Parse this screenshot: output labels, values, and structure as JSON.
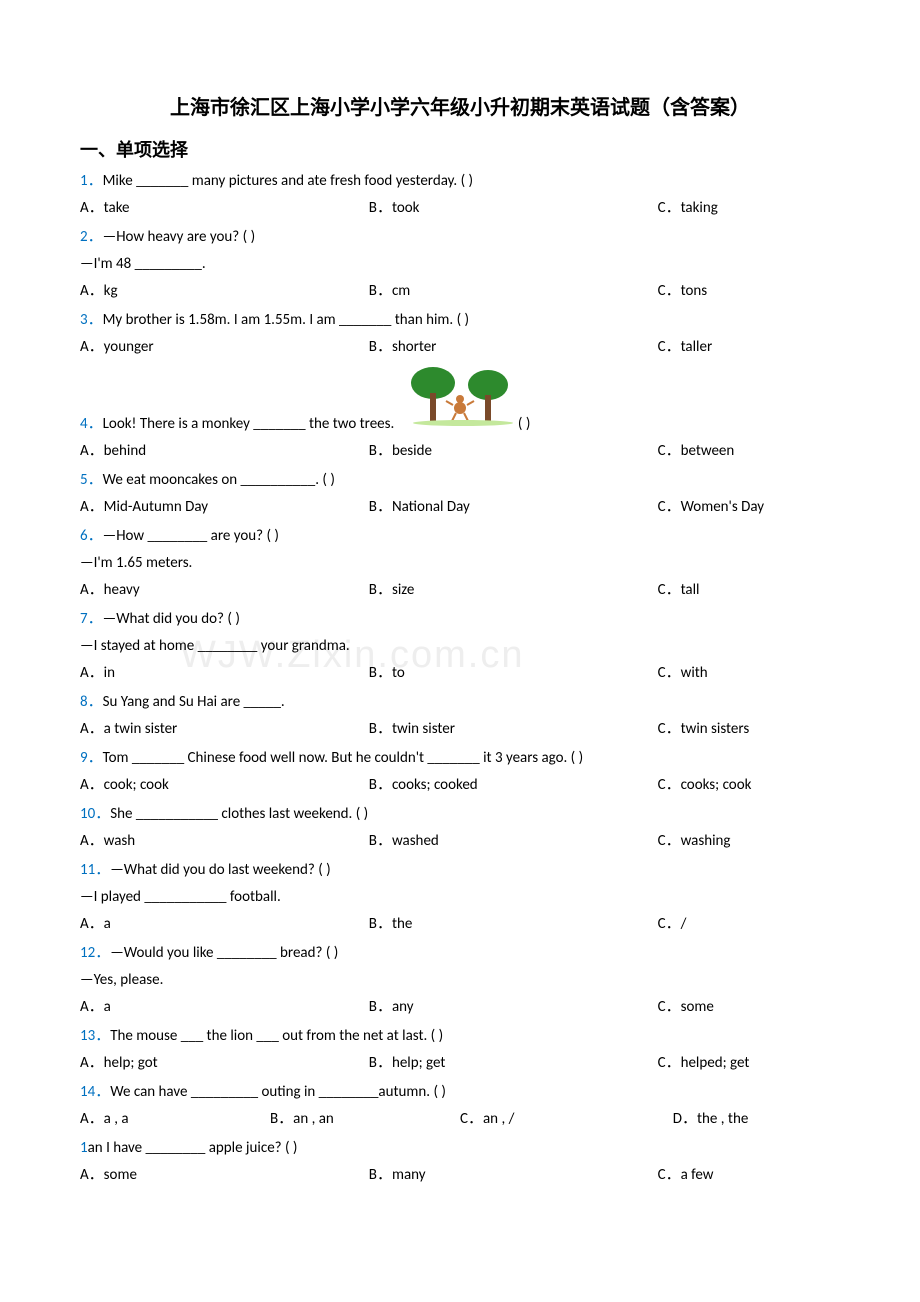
{
  "title": "上海市徐汇区上海小学小学六年级小升初期末英语试题（含答案）",
  "section_header": "一、单项选择",
  "colors": {
    "question_number": "#0070c0",
    "text": "#000000",
    "watermark": "#eeeeee",
    "background": "#ffffff"
  },
  "watermark_text": "WJW.Zixin.com.cn",
  "questions": [
    {
      "num": "1．",
      "text": "Mike _______ many pictures and ate fresh food yesterday. (    )",
      "options": [
        "A．take",
        "B．took",
        "C．taking"
      ]
    },
    {
      "num": "2．",
      "text": "—How heavy are you? (    )",
      "cont": "—I'm 48 _________.",
      "options": [
        "A．kg",
        "B．cm",
        "C．tons"
      ]
    },
    {
      "num": "3．",
      "text": "My brother is 1.58m. I am 1.55m. I am _______ than him. (    )",
      "options": [
        "A．younger",
        "B．shorter",
        "C．taller"
      ]
    },
    {
      "num": "4．",
      "text": "Look! There is a monkey _______ the two trees.",
      "tail": "         (    )",
      "options": [
        "A．behind",
        "B．beside",
        "C．between"
      ]
    },
    {
      "num": "5．",
      "text": "We eat mooncakes on __________. (    )",
      "options": [
        "A．Mid-Autumn Day",
        "B．National Day",
        "C．Women's Day"
      ]
    },
    {
      "num": "6．",
      "text": "—How ________ are you? (   )",
      "cont": "—I'm 1.65 meters.",
      "options": [
        "A．heavy",
        "B．size",
        "C．tall"
      ]
    },
    {
      "num": "7．",
      "text": "—What did you do? (     )",
      "cont": "—I stayed at home ________ your grandma.",
      "options": [
        "A．in",
        "B．to",
        "C．with"
      ]
    },
    {
      "num": "8．",
      "text": "Su Yang and Su Hai are _____.",
      "options": [
        "A．a twin sister",
        "B．twin sister",
        "C．twin sisters"
      ]
    },
    {
      "num": "9．",
      "text": "Tom _______ Chinese food well now. But he couldn't _______ it 3 years ago. (    )",
      "options": [
        "A．cook; cook",
        "B．cooks; cooked",
        "C．cooks; cook"
      ]
    },
    {
      "num": "10．",
      "text": "She ___________ clothes last weekend. (     )",
      "options": [
        "A．wash",
        "B．washed",
        "C．washing"
      ]
    },
    {
      "num": "11．",
      "text": "—What did you do last weekend? (    )",
      "cont": "—I played ___________ football.",
      "options": [
        "A．a",
        "B．the",
        "C．/"
      ]
    },
    {
      "num": "12．",
      "text": "—Would you like ________ bread? (           )",
      "cont": "—Yes, please.",
      "options": [
        "A．a",
        "B．any",
        "C．some"
      ]
    },
    {
      "num": "13．",
      "text": "The mouse ___ the lion ___ out from the net at last. (  )",
      "options": [
        "A．help; got",
        "B．help; get",
        "C．helped; get"
      ]
    },
    {
      "num": "14．",
      "text": "We can have _________ outing in ________autumn. (   )",
      "options4": [
        "A．a , a",
        "B．an , an",
        "C．an , /",
        "D．the , the"
      ]
    },
    {
      "num": "1",
      "text": "an I have ________ apple juice? (   )",
      "options": [
        "A．some",
        "B．many",
        "C．a few"
      ]
    }
  ]
}
